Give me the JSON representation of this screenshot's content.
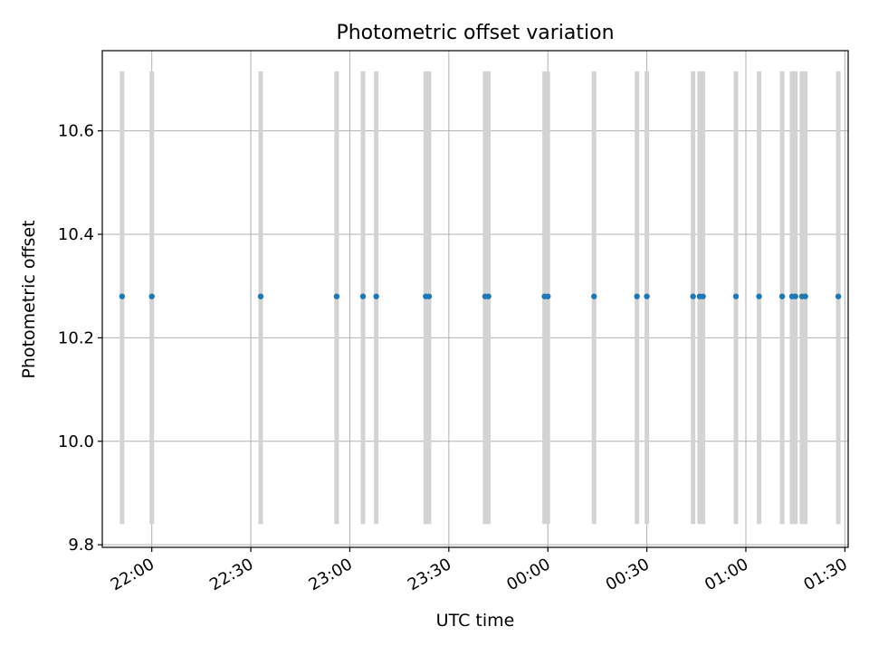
{
  "chart_data": {
    "type": "scatter",
    "title": "Photometric offset variation",
    "xlabel": "UTC time",
    "ylabel": "Photometric offset",
    "x_tick_labels": [
      "22:00",
      "22:30",
      "23:00",
      "23:30",
      "00:00",
      "00:30",
      "01:00",
      "01:30"
    ],
    "y_tick_labels": [
      "9.8",
      "10.0",
      "10.2",
      "10.4",
      "10.6"
    ],
    "xlim": [
      "21:45",
      "01:31"
    ],
    "ylim": [
      9.795,
      10.755
    ],
    "grid": true,
    "x_tick_label_rotation": "slanted",
    "error_bar_range": [
      9.84,
      10.715
    ],
    "x": [
      "21:51",
      "22:00",
      "22:33",
      "22:56",
      "23:04",
      "23:08",
      "23:23",
      "23:24",
      "23:41",
      "23:42",
      "23:59",
      "00:00",
      "00:14",
      "00:27",
      "00:30",
      "00:44",
      "00:46",
      "00:47",
      "00:57",
      "01:04",
      "01:11",
      "01:14",
      "01:15",
      "01:17",
      "01:18",
      "01:28"
    ],
    "y": [
      10.28,
      10.28,
      10.28,
      10.28,
      10.28,
      10.28,
      10.28,
      10.28,
      10.28,
      10.28,
      10.28,
      10.28,
      10.28,
      10.28,
      10.28,
      10.28,
      10.28,
      10.28,
      10.28,
      10.28,
      10.28,
      10.28,
      10.28,
      10.28,
      10.28,
      10.28
    ],
    "colors": {
      "points": "#1f77b4",
      "error_bars": "#d3d3d3",
      "grid": "#b0b0b0",
      "axes": "#000000"
    }
  }
}
